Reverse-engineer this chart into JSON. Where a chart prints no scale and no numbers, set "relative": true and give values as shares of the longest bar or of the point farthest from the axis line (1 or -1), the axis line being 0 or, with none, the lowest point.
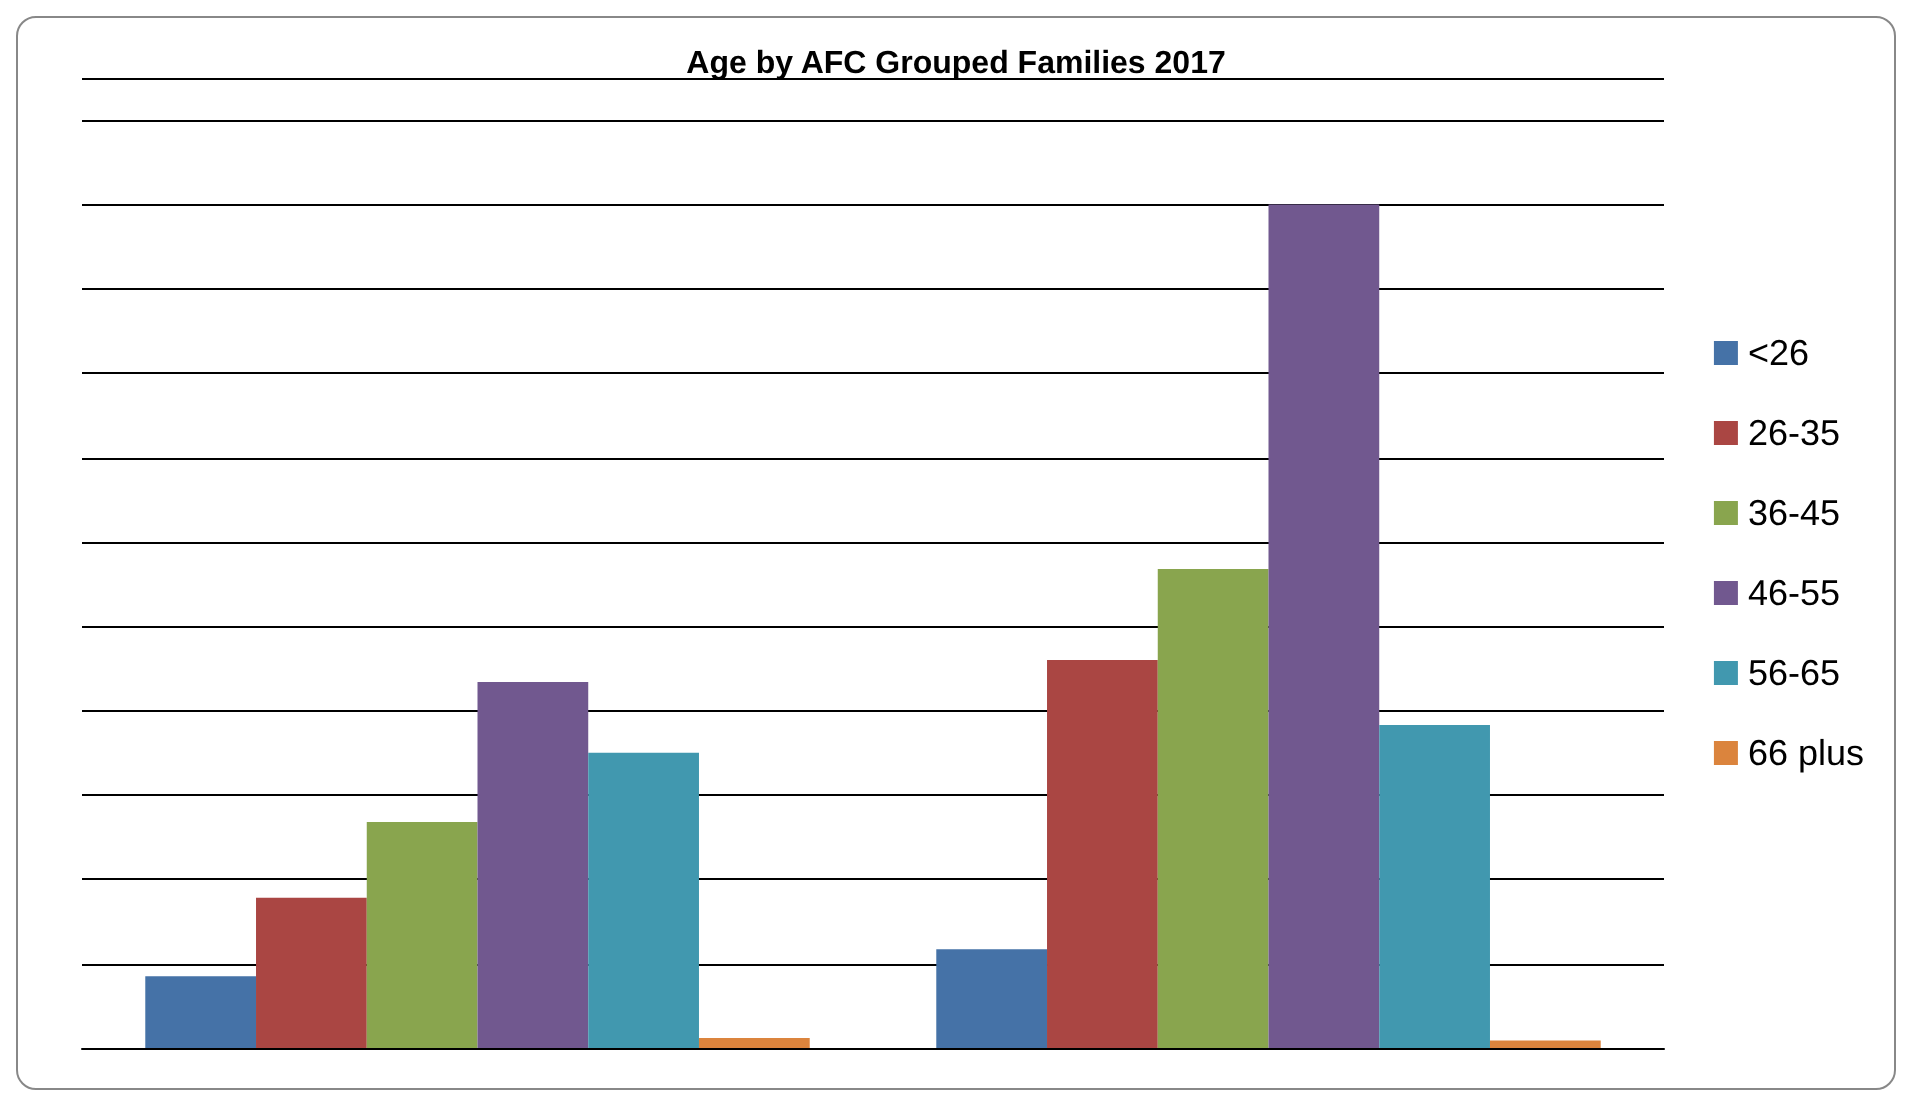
{
  "chart_data": {
    "type": "bar",
    "title": "Age by AFC Grouped Families 2017",
    "categories": [
      null,
      null
    ],
    "relative": true,
    "grid": "y",
    "legend": "right",
    "series": [
      {
        "name": "<26",
        "color": "#4572a7",
        "values": [
          0.085,
          0.117
        ]
      },
      {
        "name": "26-35",
        "color": "#aa4643",
        "values": [
          0.178,
          0.46
        ]
      },
      {
        "name": "36-45",
        "color": "#89a54e",
        "values": [
          0.268,
          0.568
        ]
      },
      {
        "name": "46-55",
        "color": "#71588f",
        "values": [
          0.434,
          1
        ]
      },
      {
        "name": "56-65",
        "color": "#4198af",
        "values": [
          0.35,
          0.383
        ]
      },
      {
        "name": "66 plus",
        "color": "#db843d",
        "values": [
          0.012,
          0.009
        ]
      }
    ]
  }
}
